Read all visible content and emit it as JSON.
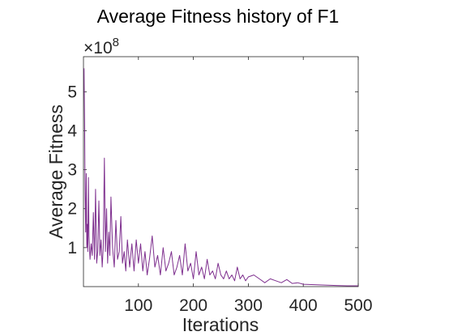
{
  "chart_data": {
    "type": "line",
    "title": "Average Fitness history of F1",
    "xlabel": "Iterations",
    "ylabel": "Average Fitness",
    "y_multiplier": "×10",
    "y_multiplier_exponent": "8",
    "xlim": [
      0,
      500
    ],
    "ylim": [
      0,
      5.9
    ],
    "x_ticks": [
      100,
      200,
      300,
      400,
      500
    ],
    "y_ticks": [
      1,
      2,
      3,
      4,
      5
    ],
    "grid": false,
    "line_color": "#7e2f8e",
    "x": [
      1,
      2,
      3,
      4,
      5,
      6,
      7,
      8,
      9,
      10,
      12,
      14,
      16,
      18,
      20,
      22,
      24,
      26,
      28,
      30,
      32,
      34,
      36,
      38,
      40,
      42,
      44,
      46,
      48,
      50,
      53,
      56,
      59,
      62,
      65,
      68,
      71,
      74,
      77,
      80,
      84,
      88,
      92,
      96,
      100,
      104,
      108,
      112,
      116,
      120,
      125,
      130,
      135,
      140,
      145,
      150,
      155,
      160,
      165,
      170,
      175,
      180,
      185,
      190,
      195,
      200,
      205,
      210,
      215,
      220,
      225,
      230,
      235,
      240,
      245,
      250,
      255,
      260,
      265,
      270,
      275,
      280,
      285,
      290,
      295,
      300,
      310,
      320,
      330,
      340,
      350,
      360,
      370,
      380,
      390,
      400,
      420,
      440,
      460,
      480,
      500
    ],
    "y": [
      5.6,
      4.2,
      2.4,
      1.4,
      2.9,
      1.0,
      1.6,
      0.9,
      2.8,
      1.3,
      0.7,
      1.1,
      0.8,
      1.9,
      0.7,
      2.5,
      0.6,
      0.9,
      2.2,
      0.8,
      1.2,
      0.5,
      1.0,
      3.3,
      0.9,
      2.0,
      0.6,
      1.4,
      0.8,
      2.3,
      1.0,
      0.5,
      1.7,
      0.7,
      0.9,
      1.8,
      0.6,
      0.9,
      0.4,
      1.2,
      0.5,
      1.1,
      0.4,
      1.2,
      0.6,
      1.1,
      0.4,
      0.9,
      0.3,
      0.7,
      1.3,
      0.5,
      0.8,
      0.3,
      1.0,
      0.4,
      0.6,
      0.9,
      0.3,
      0.5,
      0.8,
      0.3,
      1.1,
      0.4,
      0.6,
      0.2,
      0.9,
      0.3,
      0.5,
      0.2,
      0.7,
      0.3,
      0.4,
      0.2,
      0.6,
      0.3,
      0.2,
      0.4,
      0.2,
      0.3,
      0.15,
      0.5,
      0.2,
      0.3,
      0.15,
      0.25,
      0.3,
      0.2,
      0.1,
      0.2,
      0.15,
      0.1,
      0.18,
      0.08,
      0.1,
      0.06,
      0.05,
      0.04,
      0.03,
      0.02,
      0.02
    ]
  }
}
